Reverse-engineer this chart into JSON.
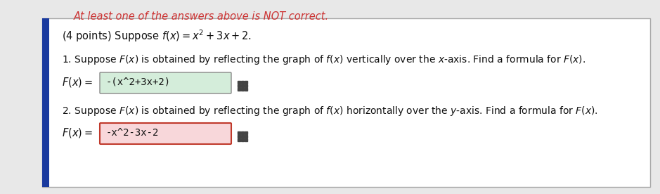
{
  "top_text": "At least one of the answers above is NOT correct.",
  "main_text": "(4 points) Suppose $f(x) = x^2 + 3x + 2$.",
  "q1_text": "1. Suppose $F(x)$ is obtained by reflecting the graph of $f(x)$ vertically over the $x$-axis. Find a formula for $F(x)$.",
  "q1_label": "$F(x)=$",
  "q1_answer": "-(x^2+3x+2)",
  "q1_box_color": "#d4edda",
  "q1_border_color": "#888888",
  "q2_text": "2. Suppose $F(x)$ is obtained by reflecting the graph of $f(x)$ horizontally over the $y$-axis. Find a formula for $F(x)$.",
  "q2_label": "$F(x)=$",
  "q2_answer": "-x^2-3x-2",
  "q2_box_color": "#f8d7da",
  "q2_border_color": "#c0392b",
  "outer_bg": "#e8e8e8",
  "card_bg": "#ffffff",
  "border_color": "#aaaaaa",
  "left_bar_color": "#1a3a9e",
  "top_text_color": "#cc3333",
  "body_text_color": "#111111",
  "grid_icon_color": "#444444",
  "font_size_top": 10.5,
  "font_size_body": 10.5,
  "font_size_answer": 10,
  "fig_width": 9.39,
  "fig_height": 2.76,
  "dpi": 100
}
